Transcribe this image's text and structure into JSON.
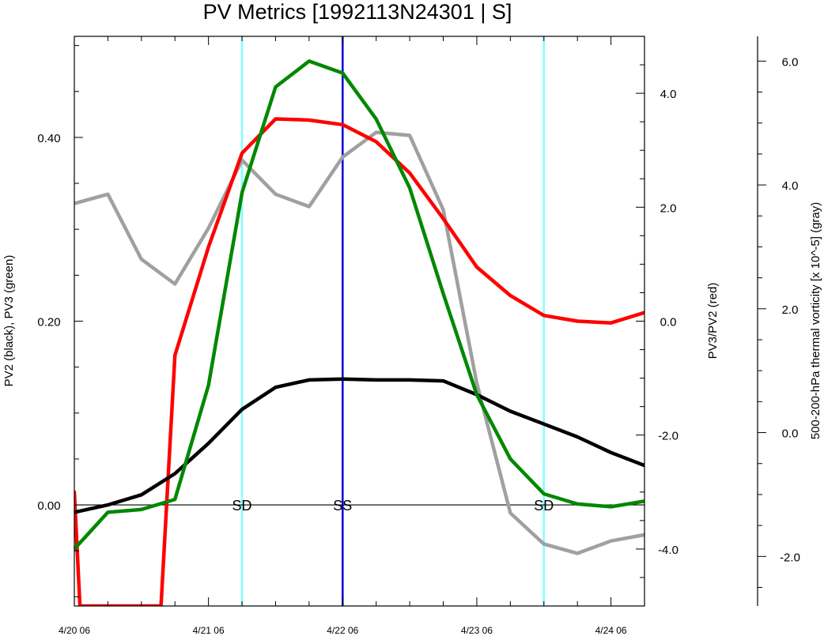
{
  "chart_data": {
    "type": "line",
    "title": "PV Metrics [1992113N24301 | S]",
    "x_ticks": [
      "4/20 06",
      "4/21 06",
      "4/22 06",
      "4/23 06",
      "4/24 06"
    ],
    "x_time_hours": [
      0,
      6,
      12,
      18,
      24,
      30,
      36,
      42,
      48,
      54,
      60,
      66,
      72,
      78,
      84,
      90,
      96,
      102
    ],
    "axes": {
      "left": {
        "label": "PV2 (black), PV3 (green)",
        "ylim": [
          -0.11,
          0.51
        ],
        "ticks": [
          "0.00",
          "0.20",
          "0.40"
        ],
        "tick_values": [
          0.0,
          0.2,
          0.4
        ]
      },
      "right1": {
        "label": "PV3/PV2 (red)",
        "ylim": [
          -5.0,
          5.0
        ],
        "ticks": [
          "-4.0",
          "-2.0",
          "0.0",
          "2.0",
          "4.0"
        ],
        "tick_values": [
          -4.0,
          -2.0,
          0.0,
          2.0,
          4.0
        ]
      },
      "right2": {
        "label": "500-200-hPa thermal vorticity [x 10^-5] (gray)",
        "ylim": [
          -2.8,
          6.4
        ],
        "ticks": [
          "-2.0",
          "0.0",
          "2.0",
          "4.0",
          "6.0"
        ],
        "tick_values": [
          -2.0,
          0.0,
          2.0,
          4.0,
          6.0
        ]
      }
    },
    "series": [
      {
        "axis": "left",
        "color": "#000000",
        "x": [
          0,
          6,
          12,
          18,
          24,
          30,
          36,
          42,
          48,
          54,
          60,
          66,
          72,
          78,
          84,
          90,
          96,
          102
        ],
        "values": [
          -0.008,
          0.0,
          0.011,
          0.034,
          0.067,
          0.104,
          0.128,
          0.136,
          0.137,
          0.136,
          0.136,
          0.135,
          0.12,
          0.102,
          0.088,
          0.074,
          0.057,
          0.043
        ]
      },
      {
        "axis": "left",
        "color": "#008800",
        "x": [
          0,
          6,
          12,
          18,
          24,
          30,
          36,
          42,
          48,
          54,
          60,
          66,
          72,
          78,
          84,
          90,
          96,
          102
        ],
        "values": [
          -0.048,
          -0.008,
          -0.005,
          0.006,
          0.13,
          0.34,
          0.455,
          0.483,
          0.47,
          0.42,
          0.345,
          0.23,
          0.12,
          0.05,
          0.012,
          0.001,
          -0.002,
          0.004
        ]
      },
      {
        "axis": "right1",
        "color": "#ff0000",
        "x": [
          0,
          1,
          15.5,
          18,
          24,
          30,
          36,
          42,
          48,
          54,
          60,
          66,
          72,
          78,
          84,
          90,
          96,
          102
        ],
        "values": [
          -3.0,
          -5.0,
          -5.0,
          -0.6,
          1.3,
          2.95,
          3.55,
          3.53,
          3.45,
          3.15,
          2.6,
          1.8,
          0.95,
          0.45,
          0.1,
          0.0,
          -0.03,
          0.15
        ]
      },
      {
        "axis": "right2",
        "color": "#a0a0a0",
        "x": [
          0,
          6,
          12,
          18,
          24,
          30,
          36,
          42,
          48,
          54,
          60,
          66,
          72,
          78,
          84,
          90,
          96,
          102
        ],
        "values": [
          3.7,
          3.85,
          2.8,
          2.4,
          3.3,
          4.4,
          3.85,
          3.65,
          4.45,
          4.85,
          4.8,
          3.6,
          0.8,
          -1.3,
          -1.8,
          -1.95,
          -1.75,
          -1.65
        ]
      }
    ],
    "vlines": [
      {
        "x": 30,
        "color": "#80ffff",
        "label": "SD"
      },
      {
        "x": 48,
        "color": "#0000dd",
        "label": "SS"
      },
      {
        "x": 84,
        "color": "#80ffff",
        "label": "SD"
      }
    ],
    "zero_line": {
      "axis": "left",
      "value": 0.0
    }
  }
}
